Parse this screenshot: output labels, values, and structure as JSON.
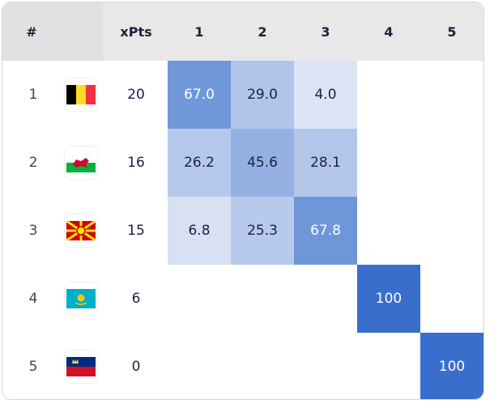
{
  "table": {
    "header": {
      "rank": "#",
      "xpts": "xPts",
      "positions": [
        "1",
        "2",
        "3",
        "4",
        "5"
      ]
    },
    "rows": [
      {
        "rank": "1",
        "xpts": "20",
        "probs": [
          "67.0",
          "29.0",
          "4.0",
          null,
          null
        ]
      },
      {
        "rank": "2",
        "xpts": "16",
        "probs": [
          "26.2",
          "45.6",
          "28.1",
          null,
          null
        ]
      },
      {
        "rank": "3",
        "xpts": "15",
        "probs": [
          "6.8",
          "25.3",
          "67.8",
          null,
          null
        ]
      },
      {
        "rank": "4",
        "xpts": "6",
        "probs": [
          null,
          null,
          null,
          "100",
          null
        ]
      },
      {
        "rank": "5",
        "xpts": "0",
        "probs": [
          null,
          null,
          null,
          null,
          "100"
        ]
      }
    ]
  }
}
